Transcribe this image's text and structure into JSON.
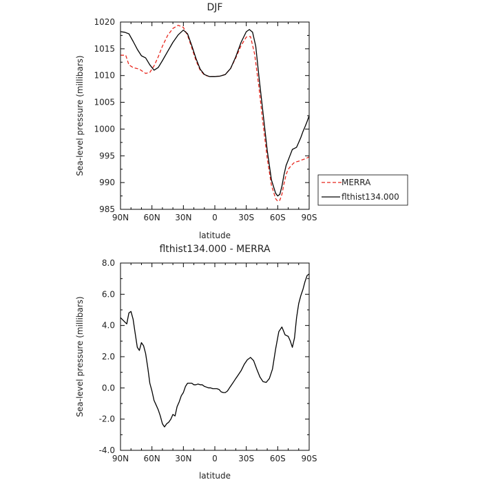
{
  "chart_data": [
    {
      "type": "line",
      "title": "DJF",
      "xlabel": "latitude",
      "ylabel": "Sea-level pressure (millibars)",
      "xlim": [
        90,
        -90
      ],
      "ylim": [
        985,
        1020
      ],
      "xticks": [
        90,
        60,
        30,
        0,
        -30,
        -60,
        -90
      ],
      "xtick_labels": [
        "90N",
        "60N",
        "30N",
        "0",
        "30S",
        "60S",
        "90S"
      ],
      "yticks": [
        985,
        990,
        995,
        1000,
        1005,
        1010,
        1015,
        1020
      ],
      "ytick_labels": [
        "985",
        "990",
        "995",
        "1000",
        "1005",
        "1010",
        "1015",
        "1020"
      ],
      "grid": false,
      "legend": "right",
      "series": [
        {
          "name": "MERRA",
          "color": "#e8251b",
          "dash": "dashed",
          "x": [
            90,
            85,
            82,
            78,
            72,
            66,
            62,
            58,
            54,
            50,
            45,
            40,
            35,
            30,
            26,
            22,
            18,
            14,
            10,
            5,
            0,
            -5,
            -10,
            -15,
            -20,
            -25,
            -30,
            -34,
            -38,
            -42,
            -46,
            -50,
            -54,
            -58,
            -60,
            -62,
            -64,
            -66,
            -68,
            -70,
            -73,
            -76,
            -80,
            -84,
            -87,
            -90
          ],
          "y": [
            1013.8,
            1013.8,
            1012.0,
            1011.5,
            1011.2,
            1010.4,
            1010.6,
            1011.8,
            1013.5,
            1015.5,
            1017.5,
            1018.8,
            1019.4,
            1019.0,
            1017.5,
            1015.2,
            1012.8,
            1011.0,
            1010.1,
            1009.8,
            1009.8,
            1009.9,
            1010.2,
            1011.3,
            1013.3,
            1015.6,
            1017.2,
            1017.3,
            1014.0,
            1008.0,
            1001.0,
            994.5,
            989.5,
            987.0,
            986.5,
            986.7,
            987.8,
            989.8,
            991.5,
            992.5,
            993.2,
            993.8,
            994.0,
            994.3,
            994.5,
            994.8
          ]
        },
        {
          "name": "flthist134.000",
          "color": "#000000",
          "dash": "solid",
          "x": [
            90,
            86,
            82,
            78,
            74,
            70,
            66,
            62,
            58,
            54,
            50,
            45,
            40,
            35,
            30,
            26,
            22,
            18,
            14,
            10,
            5,
            0,
            -5,
            -10,
            -15,
            -20,
            -25,
            -30,
            -33,
            -36,
            -39,
            -42,
            -46,
            -50,
            -54,
            -58,
            -60,
            -62,
            -64,
            -66,
            -68,
            -70,
            -72,
            -74,
            -76,
            -78,
            -80,
            -82,
            -84,
            -86,
            -88,
            -90
          ],
          "y": [
            1018.2,
            1018.1,
            1017.8,
            1016.4,
            1014.9,
            1013.7,
            1013.3,
            1012.0,
            1011.0,
            1011.5,
            1012.8,
            1014.5,
            1016.2,
            1017.6,
            1018.5,
            1017.8,
            1015.6,
            1013.2,
            1011.2,
            1010.2,
            1009.8,
            1009.8,
            1009.9,
            1010.2,
            1011.3,
            1013.5,
            1016.2,
            1018.2,
            1018.6,
            1018.1,
            1015.5,
            1010.0,
            1003.0,
            996.0,
            990.5,
            988.0,
            987.5,
            987.8,
            989.3,
            991.5,
            993.2,
            994.2,
            995.2,
            996.2,
            996.4,
            996.6,
            997.5,
            998.4,
            999.5,
            1000.4,
            1001.4,
            1002.5
          ]
        }
      ]
    },
    {
      "type": "line",
      "title": "flthist134.000 - MERRA",
      "xlabel": "latitude",
      "ylabel": "Sea-level pressure (millibars)",
      "xlim": [
        90,
        -90
      ],
      "ylim": [
        -4,
        8
      ],
      "xticks": [
        90,
        60,
        30,
        0,
        -30,
        -60,
        -90
      ],
      "xtick_labels": [
        "90N",
        "60N",
        "30N",
        "0",
        "30S",
        "60S",
        "90S"
      ],
      "yticks": [
        -4,
        -2,
        0,
        2,
        4,
        6,
        8
      ],
      "ytick_labels": [
        "-4.0",
        "-2.0",
        "0.0",
        "2.0",
        "4.0",
        "6.0",
        "8.0"
      ],
      "grid": false,
      "series": [
        {
          "color": "#000000",
          "dash": "solid",
          "x": [
            90,
            87,
            84,
            82,
            80,
            78,
            76,
            74,
            72,
            70,
            68,
            66,
            64,
            62,
            60,
            58,
            56,
            54,
            52,
            50,
            48,
            46,
            44,
            42,
            40,
            38,
            36,
            34,
            32,
            30,
            28,
            26,
            24,
            22,
            20,
            18,
            16,
            14,
            12,
            10,
            8,
            6,
            4,
            2,
            0,
            -2,
            -4,
            -6,
            -8,
            -10,
            -12,
            -14,
            -16,
            -18,
            -20,
            -22,
            -25,
            -28,
            -31,
            -34,
            -37,
            -40,
            -43,
            -46,
            -49,
            -52,
            -55,
            -58,
            -61,
            -64,
            -67,
            -70,
            -72,
            -74,
            -76,
            -78,
            -80,
            -82,
            -84,
            -86,
            -88,
            -90
          ],
          "y": [
            4.5,
            4.3,
            4.1,
            4.8,
            4.9,
            4.4,
            3.5,
            2.6,
            2.4,
            2.9,
            2.7,
            2.2,
            1.3,
            0.3,
            -0.2,
            -0.8,
            -1.1,
            -1.4,
            -1.8,
            -2.3,
            -2.5,
            -2.3,
            -2.2,
            -2.0,
            -1.7,
            -1.8,
            -1.2,
            -0.9,
            -0.5,
            -0.3,
            0.1,
            0.3,
            0.3,
            0.3,
            0.2,
            0.2,
            0.25,
            0.2,
            0.2,
            0.1,
            0.05,
            0.0,
            0.0,
            -0.05,
            -0.05,
            -0.05,
            -0.1,
            -0.25,
            -0.3,
            -0.3,
            -0.2,
            0.0,
            0.2,
            0.4,
            0.6,
            0.8,
            1.1,
            1.5,
            1.8,
            1.95,
            1.75,
            1.2,
            0.7,
            0.4,
            0.35,
            0.6,
            1.2,
            2.5,
            3.6,
            3.9,
            3.4,
            3.3,
            3.0,
            2.6,
            3.2,
            4.5,
            5.4,
            5.9,
            6.3,
            6.8,
            7.2,
            7.3
          ]
        }
      ]
    }
  ]
}
